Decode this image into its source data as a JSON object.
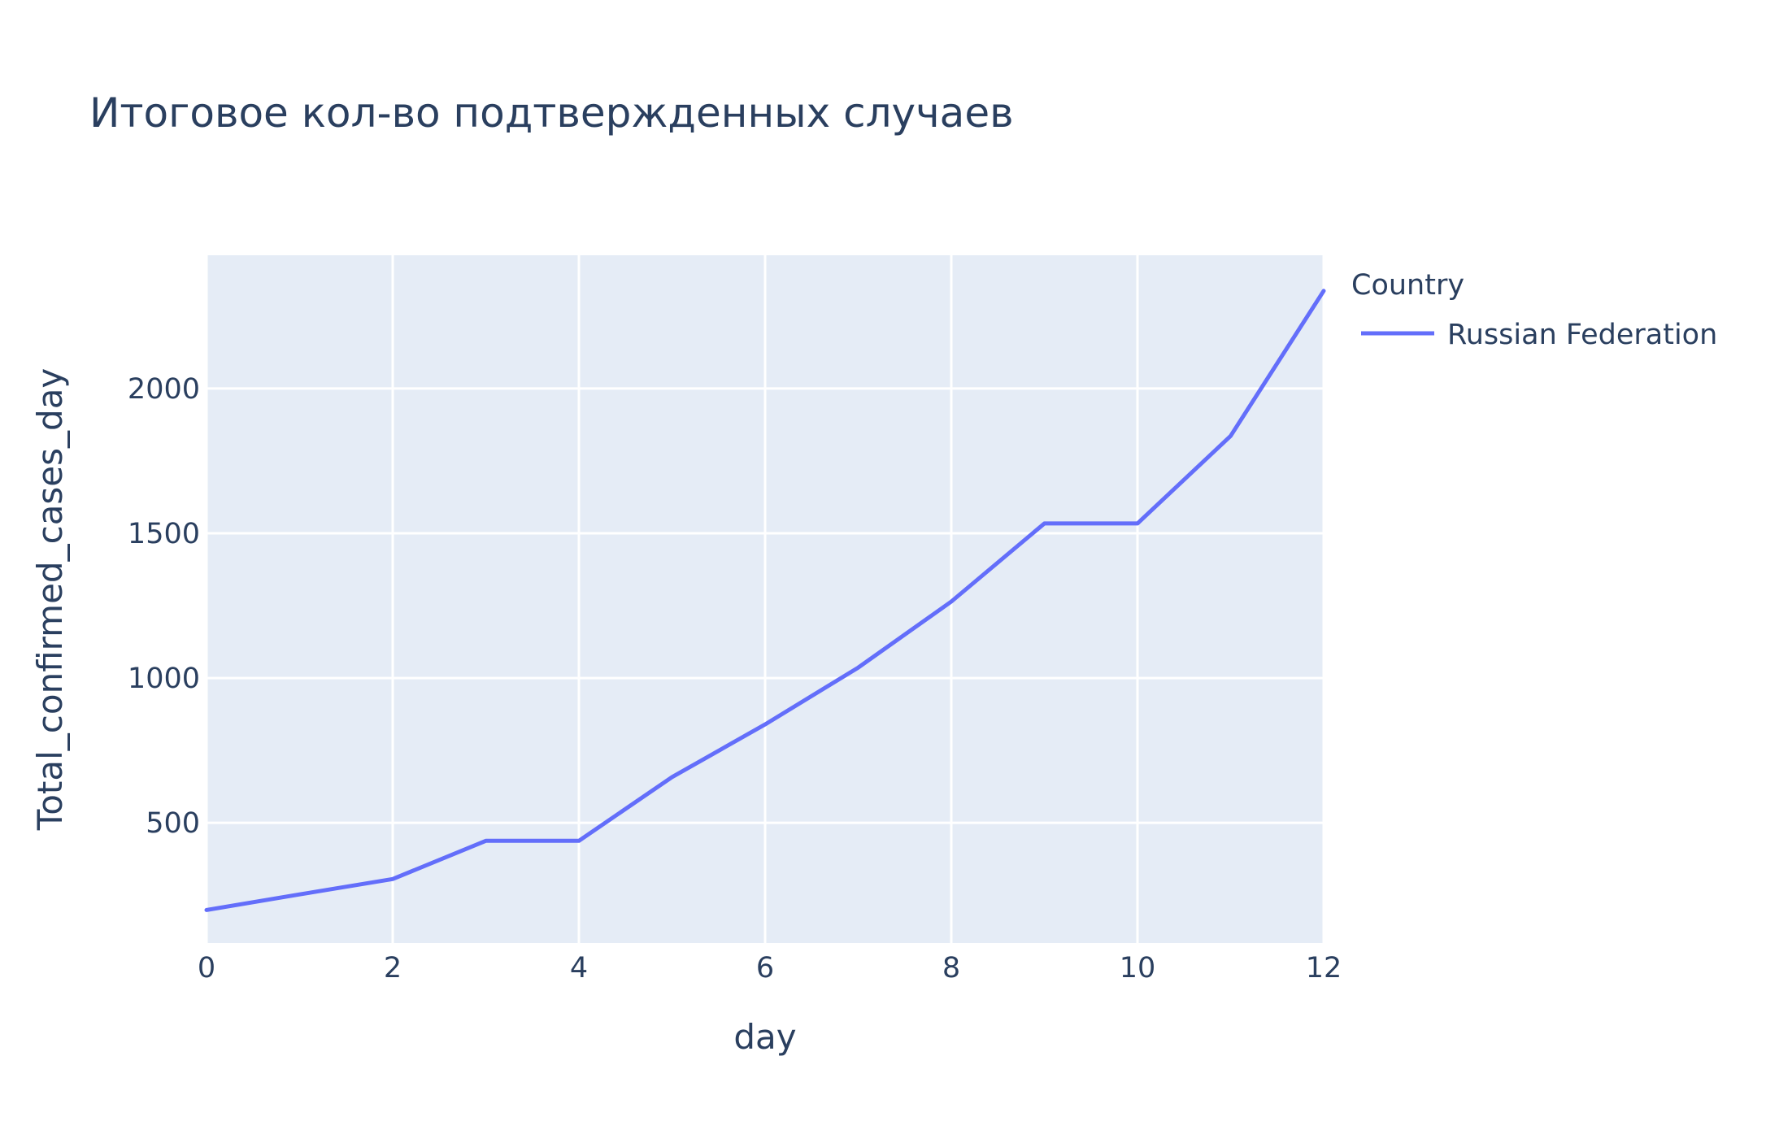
{
  "chart_data": {
    "type": "line",
    "title": "Итоговое кол-во подтвержденных случаев",
    "xlabel": "day",
    "ylabel": "Total_confirmed_cases_day",
    "xlim": [
      0,
      12
    ],
    "ylim": [
      85,
      2460
    ],
    "x_ticks": [
      0,
      2,
      4,
      6,
      8,
      10,
      12
    ],
    "y_ticks": [
      500,
      1000,
      1500,
      2000
    ],
    "grid": true,
    "legend": {
      "title": "Country",
      "placement": "top-right outside plot"
    },
    "colors": {
      "plot_background": "#e5ecf6",
      "grid": "#ffffff",
      "text": "#2a3f5f"
    },
    "series": [
      {
        "name": "Russian Federation",
        "color": "#636efa",
        "x": [
          0,
          1,
          2,
          3,
          4,
          5,
          6,
          7,
          8,
          9,
          10,
          11,
          12
        ],
        "y": [
          199,
          253,
          306,
          438,
          438,
          658,
          840,
          1036,
          1264,
          1534,
          1534,
          1836,
          2337
        ]
      }
    ]
  }
}
